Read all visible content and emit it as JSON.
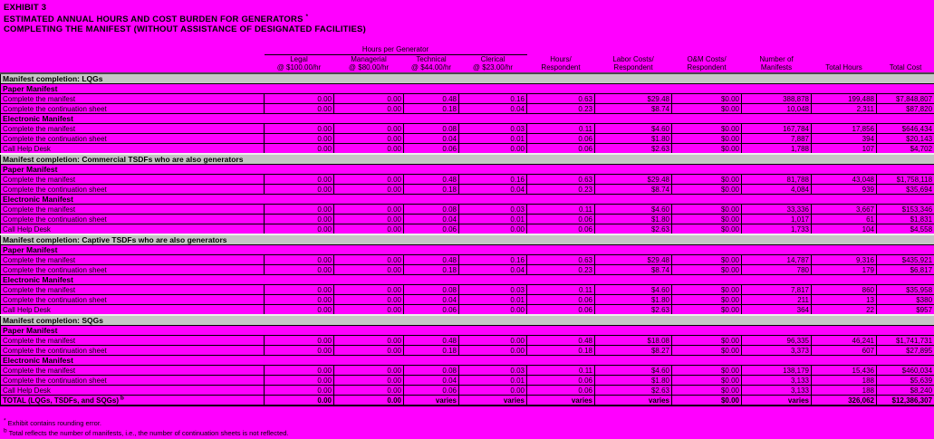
{
  "title": {
    "line1": "EXHIBIT 3",
    "line2": "ESTIMATED ANNUAL HOURS AND COST BURDEN FOR GENERATORS",
    "line2_sup": "*",
    "line3": "COMPLETING THE MANIFEST (WITHOUT ASSISTANCE OF DESIGNATED FACILITIES)"
  },
  "table": {
    "spanner": "Hours per Generator",
    "columns": [
      {
        "label": "Legal",
        "sub": "@ $100.00/hr"
      },
      {
        "label": "Managerial",
        "sub": "@ $80.00/hr"
      },
      {
        "label": "Technical",
        "sub": "@ $44.00/hr"
      },
      {
        "label": "Clerical",
        "sub": "@ $23.00/hr"
      },
      {
        "label": "Hours/",
        "sub": "Respondent"
      },
      {
        "label": "Labor Costs/",
        "sub": "Respondent"
      },
      {
        "label": "O&M Costs/",
        "sub": "Respondent"
      },
      {
        "label": "Number of",
        "sub": "Manifests"
      },
      {
        "label": "Total Hours",
        "sub": ""
      },
      {
        "label": "Total Cost",
        "sub": ""
      }
    ],
    "sections": [
      {
        "title": "Manifest completion:  LQGs",
        "groups": [
          {
            "label": "Paper Manifest",
            "rows": [
              {
                "label": "Complete the manifest",
                "values": [
                  "0.00",
                  "0.00",
                  "0.48",
                  "0.16",
                  "0.63",
                  "$29.48",
                  "$0.00",
                  "388,878",
                  "199,488",
                  "$7,848,807"
                ]
              },
              {
                "label": "Complete the continuation sheet",
                "values": [
                  "0.00",
                  "0.00",
                  "0.18",
                  "0.04",
                  "0.23",
                  "$8.74",
                  "$0.00",
                  "10,048",
                  "2,311",
                  "$87,820"
                ]
              }
            ]
          },
          {
            "label": "Electronic Manifest",
            "rows": [
              {
                "label": "Complete the manifest",
                "values": [
                  "0.00",
                  "0.00",
                  "0.08",
                  "0.03",
                  "0.11",
                  "$4.60",
                  "$0.00",
                  "167,784",
                  "17,856",
                  "$646,434"
                ]
              },
              {
                "label": "Complete the continuation sheet",
                "values": [
                  "0.00",
                  "0.00",
                  "0.04",
                  "0.01",
                  "0.06",
                  "$1.80",
                  "$0.00",
                  "7,887",
                  "394",
                  "$20,143"
                ]
              },
              {
                "label": "Call Help Desk",
                "values": [
                  "0.00",
                  "0.00",
                  "0.06",
                  "0.00",
                  "0.06",
                  "$2.63",
                  "$0.00",
                  "1,788",
                  "107",
                  "$4,702"
                ]
              }
            ]
          }
        ]
      },
      {
        "title": "Manifest completion:  Commercial TSDFs who are also generators",
        "groups": [
          {
            "label": "Paper Manifest",
            "rows": [
              {
                "label": "Complete the manifest",
                "values": [
                  "0.00",
                  "0.00",
                  "0.48",
                  "0.16",
                  "0.63",
                  "$29.48",
                  "$0.00",
                  "81,788",
                  "43,048",
                  "$1,758,118"
                ]
              },
              {
                "label": "Complete the continuation sheet",
                "values": [
                  "0.00",
                  "0.00",
                  "0.18",
                  "0.04",
                  "0.23",
                  "$8.74",
                  "$0.00",
                  "4,084",
                  "939",
                  "$35,694"
                ]
              }
            ]
          },
          {
            "label": "Electronic Manifest",
            "rows": [
              {
                "label": "Complete the manifest",
                "values": [
                  "0.00",
                  "0.00",
                  "0.08",
                  "0.03",
                  "0.11",
                  "$4.60",
                  "$0.00",
                  "33,336",
                  "3,667",
                  "$153,346"
                ]
              },
              {
                "label": "Complete the continuation sheet",
                "values": [
                  "0.00",
                  "0.00",
                  "0.04",
                  "0.01",
                  "0.06",
                  "$1.80",
                  "$0.00",
                  "1,017",
                  "61",
                  "$1,831"
                ]
              },
              {
                "label": "Call Help Desk",
                "values": [
                  "0.00",
                  "0.00",
                  "0.06",
                  "0.00",
                  "0.06",
                  "$2.63",
                  "$0.00",
                  "1,733",
                  "104",
                  "$4,558"
                ]
              }
            ]
          }
        ]
      },
      {
        "title": "Manifest completion:  Captive TSDFs who are also generators",
        "groups": [
          {
            "label": "Paper Manifest",
            "rows": [
              {
                "label": "Complete the manifest",
                "values": [
                  "0.00",
                  "0.00",
                  "0.48",
                  "0.16",
                  "0.63",
                  "$29.48",
                  "$0.00",
                  "14,787",
                  "9,316",
                  "$435,921"
                ]
              },
              {
                "label": "Complete the continuation sheet",
                "values": [
                  "0.00",
                  "0.00",
                  "0.18",
                  "0.04",
                  "0.23",
                  "$8.74",
                  "$0.00",
                  "780",
                  "179",
                  "$6,817"
                ]
              }
            ]
          },
          {
            "label": "Electronic Manifest",
            "rows": [
              {
                "label": "Complete the manifest",
                "values": [
                  "0.00",
                  "0.00",
                  "0.08",
                  "0.03",
                  "0.11",
                  "$4.60",
                  "$0.00",
                  "7,817",
                  "860",
                  "$35,958"
                ]
              },
              {
                "label": "Complete the continuation sheet",
                "values": [
                  "0.00",
                  "0.00",
                  "0.04",
                  "0.01",
                  "0.06",
                  "$1.80",
                  "$0.00",
                  "211",
                  "13",
                  "$380"
                ]
              },
              {
                "label": "Call Help Desk",
                "values": [
                  "0.00",
                  "0.00",
                  "0.06",
                  "0.00",
                  "0.06",
                  "$2.63",
                  "$0.00",
                  "364",
                  "22",
                  "$957"
                ]
              }
            ]
          }
        ]
      },
      {
        "title": "Manifest completion:  SQGs",
        "groups": [
          {
            "label": "Paper Manifest",
            "rows": [
              {
                "label": "Complete the manifest",
                "values": [
                  "0.00",
                  "0.00",
                  "0.48",
                  "0.00",
                  "0.48",
                  "$18.08",
                  "$0.00",
                  "96,335",
                  "46,241",
                  "$1,741,731"
                ]
              },
              {
                "label": "Complete the continuation sheet",
                "values": [
                  "0.00",
                  "0.00",
                  "0.18",
                  "0.00",
                  "0.18",
                  "$8.27",
                  "$0.00",
                  "3,373",
                  "607",
                  "$27,895"
                ]
              }
            ]
          },
          {
            "label": "Electronic Manifest",
            "rows": [
              {
                "label": "Complete the manifest",
                "values": [
                  "0.00",
                  "0.00",
                  "0.08",
                  "0.03",
                  "0.11",
                  "$4.60",
                  "$0.00",
                  "138,179",
                  "15,436",
                  "$460,034"
                ]
              },
              {
                "label": "Complete the continuation sheet",
                "values": [
                  "0.00",
                  "0.00",
                  "0.04",
                  "0.01",
                  "0.06",
                  "$1.80",
                  "$0.00",
                  "3,133",
                  "188",
                  "$5,639"
                ]
              },
              {
                "label": "Call Help Desk",
                "values": [
                  "0.00",
                  "0.00",
                  "0.06",
                  "0.00",
                  "0.06",
                  "$2.63",
                  "$0.00",
                  "3,133",
                  "188",
                  "$8,240"
                ]
              }
            ]
          }
        ]
      }
    ],
    "total": {
      "label": "TOTAL (LQGs, TSDFs, and SQGs)",
      "label_sup": "b",
      "values": [
        "0.00",
        "0.00",
        "varies",
        "varies",
        "varies",
        "varies",
        "$0.00",
        "varies",
        "326,062",
        "$12,386,307"
      ]
    }
  },
  "footnotes": [
    {
      "marker": "*",
      "text": "Exhibit contains rounding error."
    },
    {
      "marker": "b",
      "text": "Total reflects the number of manifests, i.e., the number of continuation sheets is not reflected."
    }
  ],
  "colors": {
    "page_background": "#ff00ff",
    "section_band": "#c6c6c6",
    "grid_line": "#000000"
  }
}
